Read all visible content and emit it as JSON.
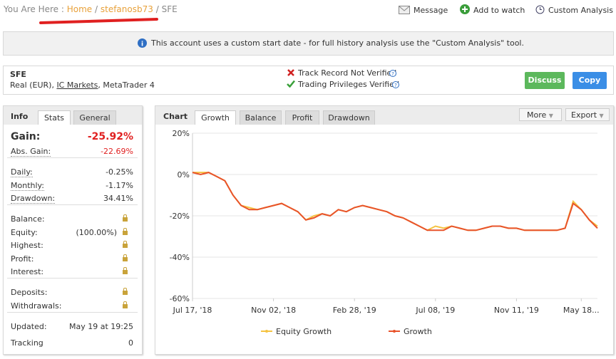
{
  "breadcrumb": {
    "prefix": "You Are Here :",
    "home": "Home",
    "separator": "/",
    "user": "stefanosb73",
    "page": "SFE"
  },
  "actions": [
    "Message",
    "Add to watch",
    "Custom Analysis"
  ],
  "notice": "This account uses a custom start date - for full history analysis use the \"Custom Analysis\" tool.",
  "account": {
    "name": "SFE",
    "details": [
      "Real (EUR), ",
      "IC Markets",
      ", MetaTrader 4"
    ],
    "status": [
      "Track Record Not Verified",
      "Trading Privileges Verified"
    ],
    "buttons": [
      "Discuss",
      "Copy"
    ]
  },
  "info_panel": {
    "tabs": [
      "Info",
      "Stats",
      "General"
    ],
    "groups": [
      [
        {
          "label": "Gain:",
          "value": "-25.92%"
        },
        {
          "label": "Abs. Gain:",
          "value": "-22.69%"
        }
      ],
      [
        {
          "label": "Daily:",
          "value": "-0.25%"
        },
        {
          "label": "Monthly:",
          "value": "-1.17%"
        },
        {
          "label": "Drawdown:",
          "value": "34.41%"
        }
      ],
      [
        {
          "label": "Balance:"
        },
        {
          "label": "Equity:",
          "note": "(100.00%)"
        },
        {
          "label": "Highest:"
        },
        {
          "label": "Profit:"
        },
        {
          "label": "Interest:"
        }
      ],
      [
        {
          "label": "Deposits:"
        },
        {
          "label": "Withdrawals:"
        }
      ],
      [
        {
          "label": "Updated:",
          "value": "May 19 at 19:25"
        },
        {
          "label": "Tracking",
          "value": "0"
        }
      ]
    ]
  },
  "chart_panel": {
    "tabs": [
      "Chart",
      "Growth",
      "Balance",
      "Profit",
      "Drawdown"
    ],
    "menus": [
      "More",
      "Export"
    ]
  },
  "chart_data": {
    "type": "line",
    "categories": [
      "Jul 17, '18",
      null,
      null,
      null,
      null,
      null,
      null,
      null,
      null,
      null,
      "Nov 02, '18",
      null,
      null,
      null,
      null,
      null,
      null,
      null,
      null,
      null,
      "Feb 28, '19",
      null,
      null,
      null,
      null,
      null,
      null,
      null,
      null,
      null,
      "Jul 08, '19",
      null,
      null,
      null,
      null,
      null,
      null,
      null,
      null,
      null,
      "Nov 11, '19",
      null,
      null,
      null,
      null,
      null,
      null,
      null,
      "May 18...",
      null,
      null
    ],
    "series": [
      {
        "name": "Equity Growth",
        "color": "#f5c342",
        "values": [
          1,
          1,
          1,
          -1,
          -3,
          -10,
          -15,
          -16,
          -17,
          -16,
          -15,
          -14,
          -16,
          -18,
          -22,
          -20,
          -19,
          -20,
          -17,
          -18,
          -16,
          -15,
          -16,
          -17,
          -18,
          -20,
          -21,
          -23,
          -25,
          -27,
          -25,
          -26,
          -25,
          -26,
          -27,
          -27,
          -26,
          -25,
          -25,
          -26,
          -26,
          -27,
          -27,
          -27,
          -27,
          -27,
          -26,
          -13,
          -17,
          -22,
          -25
        ]
      },
      {
        "name": "Growth",
        "color": "#e8532b",
        "values": [
          1,
          0,
          1,
          -1,
          -3,
          -10,
          -15,
          -17,
          -17,
          -16,
          -15,
          -14,
          -16,
          -18,
          -22,
          -21,
          -19,
          -20,
          -17,
          -18,
          -16,
          -15,
          -16,
          -17,
          -18,
          -20,
          -21,
          -23,
          -25,
          -27,
          -27,
          -27,
          -25,
          -26,
          -27,
          -27,
          -26,
          -25,
          -25,
          -26,
          -26,
          -27,
          -27,
          -27,
          -27,
          -27,
          -26,
          -14,
          -17,
          -22,
          -26
        ]
      }
    ],
    "ylim": [
      -60,
      20
    ],
    "yticks": [
      {
        "value": -60,
        "label": "-60%"
      },
      {
        "value": -40,
        "label": "-40%"
      },
      {
        "value": -20,
        "label": "-20%"
      },
      {
        "value": 0,
        "label": "0%"
      },
      {
        "value": 20,
        "label": "20%"
      }
    ],
    "grid": true
  }
}
